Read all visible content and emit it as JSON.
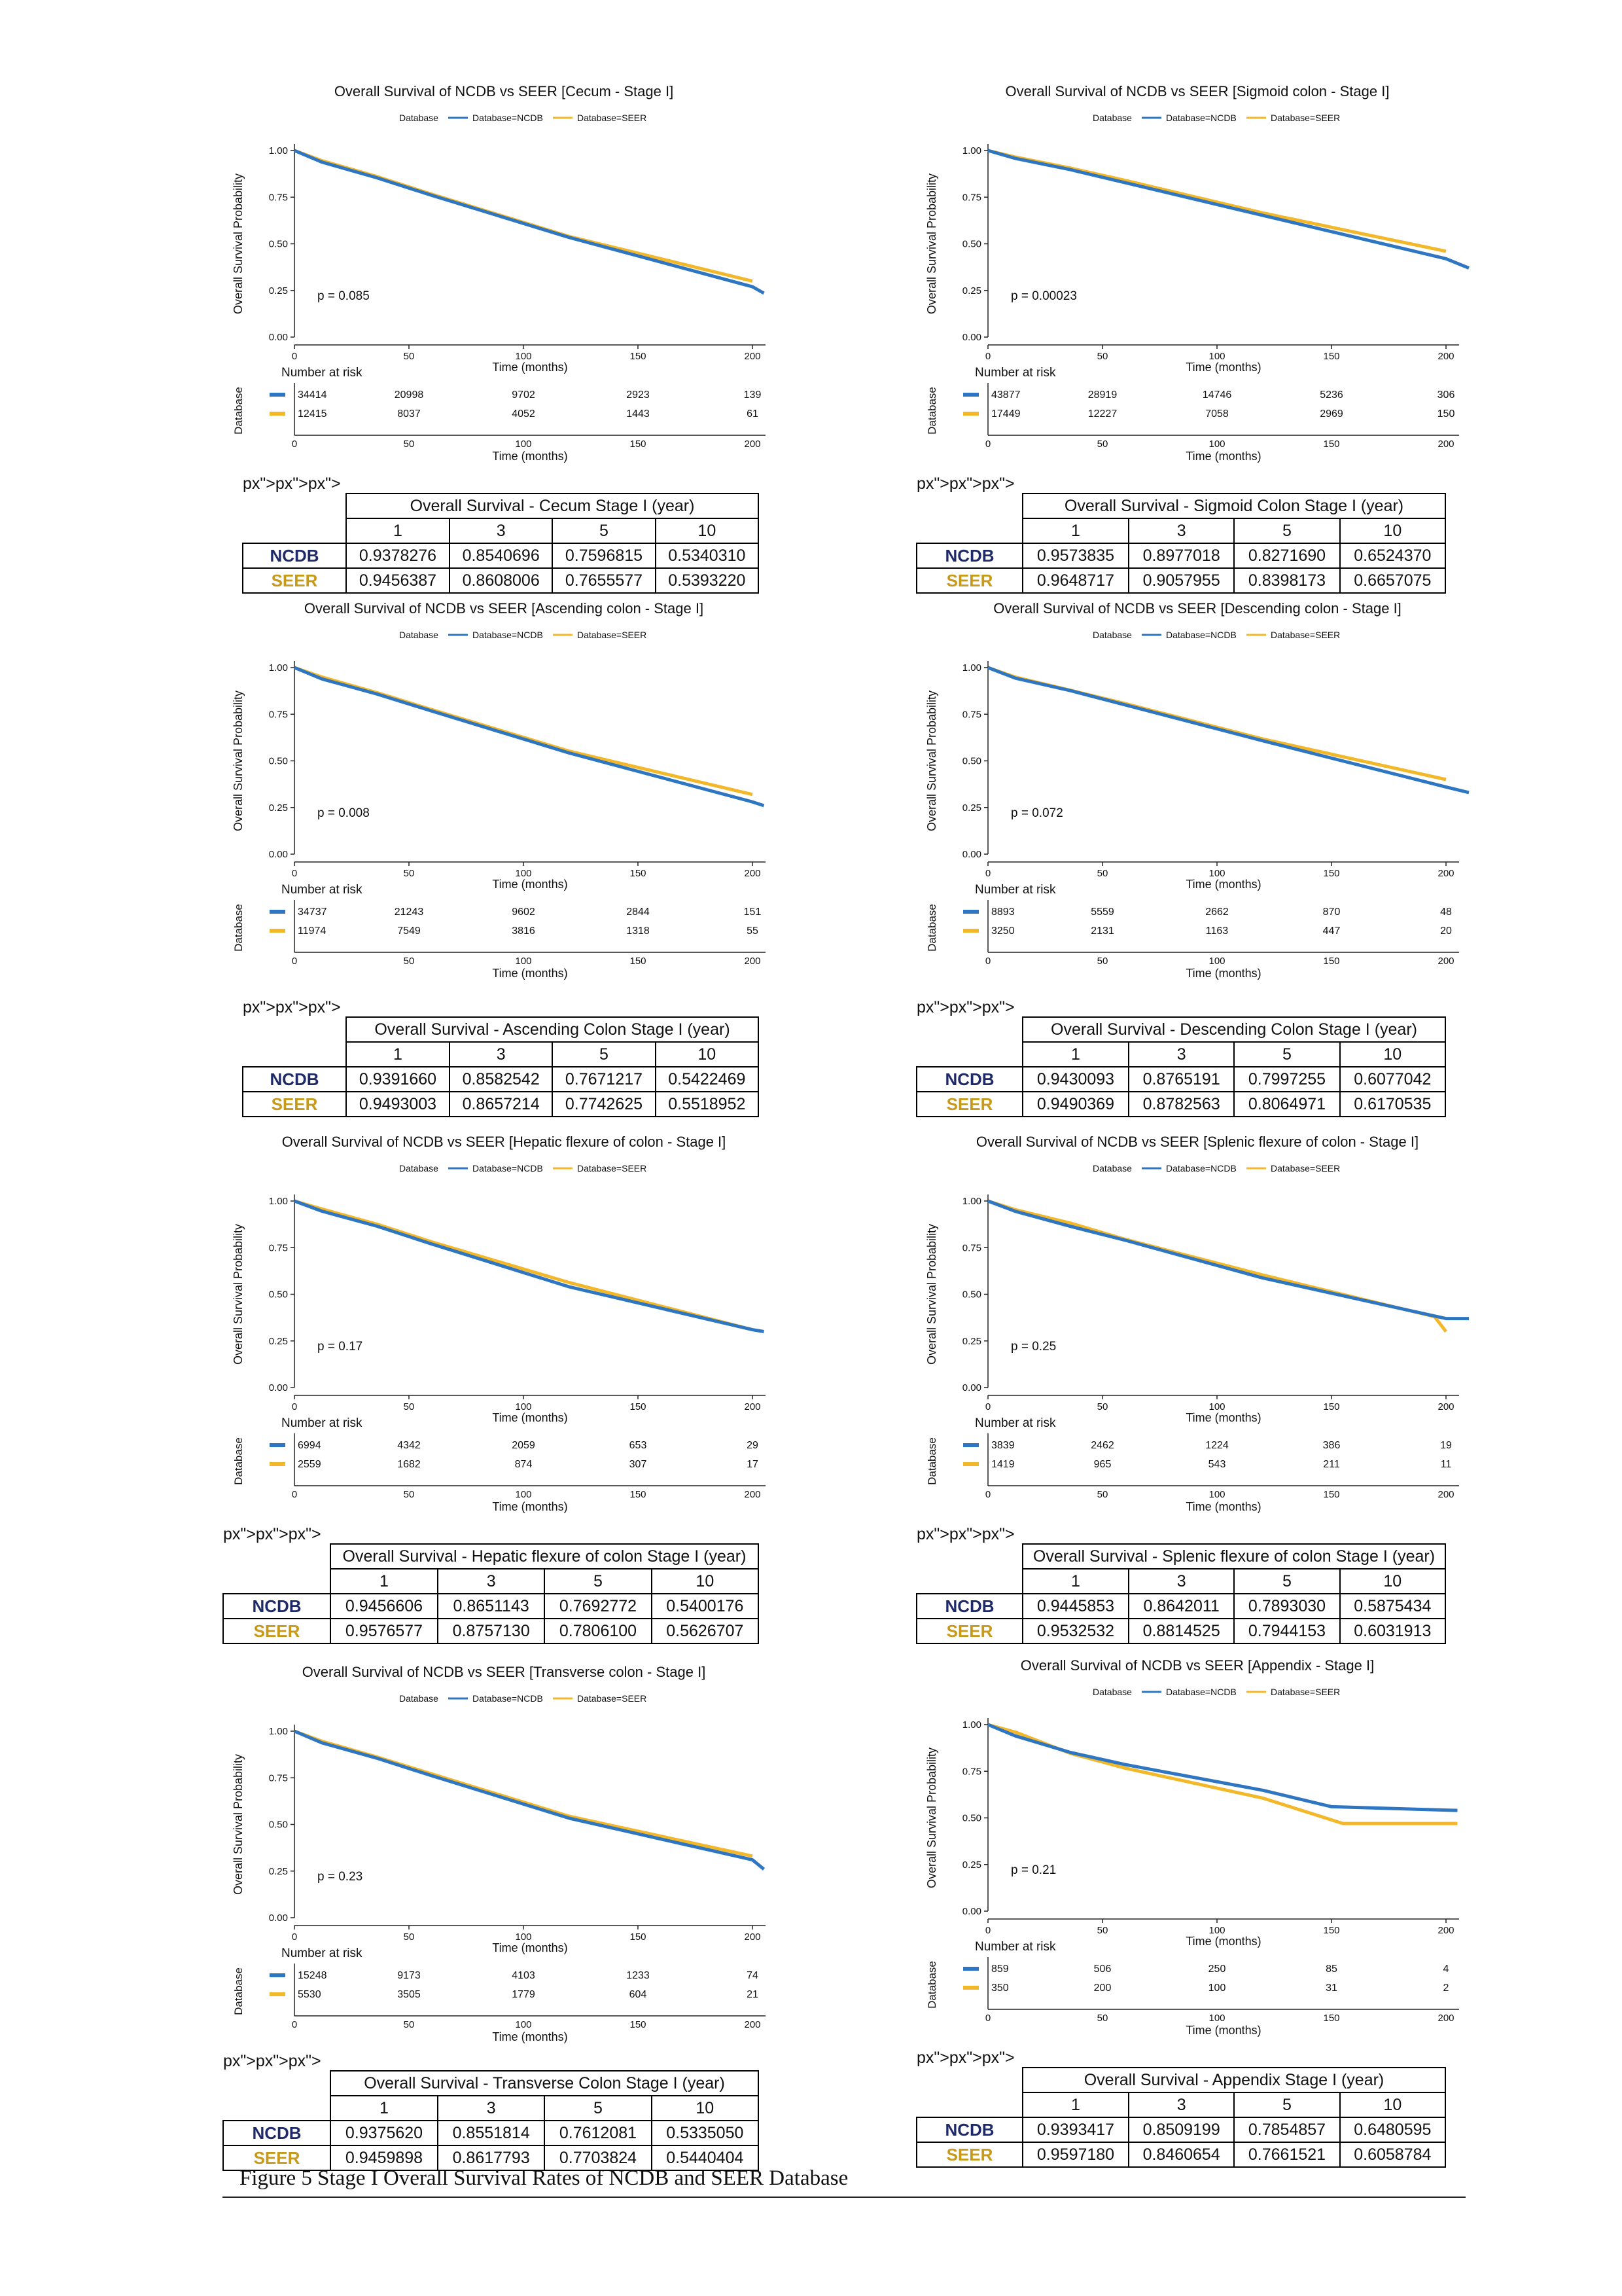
{
  "common": {
    "legend_title": "Database",
    "legend_ncdb": "Database=NCDB",
    "legend_seer": "Database=SEER",
    "y_axis_label": "Overall Survival Probability",
    "x_axis_label": "Time (months)",
    "risk_title": "Number at risk",
    "risk_axis_label": "Database",
    "y_ticks": [
      "0.00",
      "0.25",
      "0.50",
      "0.75",
      "1.00"
    ],
    "x_ticks": [
      "0",
      "50",
      "100",
      "150",
      "200"
    ],
    "table_years": [
      "1",
      "3",
      "5",
      "10"
    ],
    "row_ncdb": "NCDB",
    "row_seer": "SEER",
    "colors": {
      "ncdb": "#2e75c2",
      "seer": "#f3b82a"
    }
  },
  "caption": "Figure 5  Stage I Overall Survival Rates of NCDB and SEER Database",
  "chart_data": [
    {
      "type": "line",
      "title": "Overall Survival of NCDB vs SEER [Cecum - Stage I]",
      "xlabel": "Time (months)",
      "ylabel": "Overall Survival Probability",
      "xlim": [
        0,
        205
      ],
      "ylim": [
        0,
        1
      ],
      "p_value": "p = 0.085",
      "series": [
        {
          "name": "Database=NCDB",
          "x": [
            0,
            12,
            36,
            60,
            120,
            200,
            205
          ],
          "y": [
            1.0,
            0.9378,
            0.854,
            0.7597,
            0.534,
            0.27,
            0.235
          ]
        },
        {
          "name": "Database=SEER",
          "x": [
            0,
            12,
            36,
            60,
            120,
            200
          ],
          "y": [
            1.0,
            0.9456,
            0.8608,
            0.7656,
            0.5393,
            0.3
          ]
        }
      ],
      "risk_table": {
        "ncdb": [
          "34414",
          "20998",
          "9702",
          "2923",
          "139"
        ],
        "seer": [
          "12415",
          "8037",
          "4052",
          "1443",
          "61"
        ]
      },
      "table_title": "Overall Survival - Cecum Stage I (year)",
      "table": {
        "ncdb": [
          "0.9378276",
          "0.8540696",
          "0.7596815",
          "0.5340310"
        ],
        "seer": [
          "0.9456387",
          "0.8608006",
          "0.7655577",
          "0.5393220"
        ]
      }
    },
    {
      "type": "line",
      "title": "Overall Survival of NCDB vs SEER [Sigmoid colon - Stage I]",
      "xlabel": "Time (months)",
      "ylabel": "Overall Survival Probability",
      "xlim": [
        0,
        210
      ],
      "ylim": [
        0,
        1
      ],
      "p_value": "p = 0.00023",
      "series": [
        {
          "name": "Database=NCDB",
          "x": [
            0,
            12,
            36,
            60,
            120,
            200,
            210
          ],
          "y": [
            1.0,
            0.9574,
            0.8977,
            0.8272,
            0.6524,
            0.42,
            0.37
          ]
        },
        {
          "name": "Database=SEER",
          "x": [
            0,
            12,
            36,
            60,
            120,
            200
          ],
          "y": [
            1.0,
            0.9649,
            0.9058,
            0.8398,
            0.6657,
            0.46
          ]
        }
      ],
      "risk_table": {
        "ncdb": [
          "43877",
          "28919",
          "14746",
          "5236",
          "306"
        ],
        "seer": [
          "17449",
          "12227",
          "7058",
          "2969",
          "150"
        ]
      },
      "table_title": "Overall Survival - Sigmoid Colon Stage I (year)",
      "table": {
        "ncdb": [
          "0.9573835",
          "0.8977018",
          "0.8271690",
          "0.6524370"
        ],
        "seer": [
          "0.9648717",
          "0.9057955",
          "0.8398173",
          "0.6657075"
        ]
      }
    },
    {
      "type": "line",
      "title": "Overall Survival of NCDB vs SEER [Ascending colon - Stage I]",
      "xlabel": "Time (months)",
      "ylabel": "Overall Survival Probability",
      "xlim": [
        0,
        205
      ],
      "ylim": [
        0,
        1
      ],
      "p_value": "p = 0.008",
      "series": [
        {
          "name": "Database=NCDB",
          "x": [
            0,
            12,
            36,
            60,
            120,
            200,
            205
          ],
          "y": [
            1.0,
            0.9392,
            0.8583,
            0.7671,
            0.5422,
            0.28,
            0.26
          ]
        },
        {
          "name": "Database=SEER",
          "x": [
            0,
            12,
            36,
            60,
            120,
            200
          ],
          "y": [
            1.0,
            0.9493,
            0.8657,
            0.7743,
            0.5519,
            0.32
          ]
        }
      ],
      "risk_table": {
        "ncdb": [
          "34737",
          "21243",
          "9602",
          "2844",
          "151"
        ],
        "seer": [
          "11974",
          "7549",
          "3816",
          "1318",
          "55"
        ]
      },
      "table_title": "Overall Survival - Ascending Colon Stage I (year)",
      "table": {
        "ncdb": [
          "0.9391660",
          "0.8582542",
          "0.7671217",
          "0.5422469"
        ],
        "seer": [
          "0.9493003",
          "0.8657214",
          "0.7742625",
          "0.5518952"
        ]
      }
    },
    {
      "type": "line",
      "title": "Overall Survival of NCDB vs SEER [Descending colon - Stage I]",
      "xlabel": "Time (months)",
      "ylabel": "Overall Survival Probability",
      "xlim": [
        0,
        210
      ],
      "ylim": [
        0,
        1
      ],
      "p_value": "p = 0.072",
      "series": [
        {
          "name": "Database=NCDB",
          "x": [
            0,
            12,
            36,
            60,
            120,
            200,
            210
          ],
          "y": [
            1.0,
            0.943,
            0.8765,
            0.7997,
            0.6077,
            0.36,
            0.33
          ]
        },
        {
          "name": "Database=SEER",
          "x": [
            0,
            12,
            36,
            60,
            120,
            200
          ],
          "y": [
            1.0,
            0.949,
            0.8783,
            0.8065,
            0.6171,
            0.4
          ]
        }
      ],
      "risk_table": {
        "ncdb": [
          "8893",
          "5559",
          "2662",
          "870",
          "48"
        ],
        "seer": [
          "3250",
          "2131",
          "1163",
          "447",
          "20"
        ]
      },
      "table_title": "Overall Survival - Descending Colon Stage I (year)",
      "table": {
        "ncdb": [
          "0.9430093",
          "0.8765191",
          "0.7997255",
          "0.6077042"
        ],
        "seer": [
          "0.9490369",
          "0.8782563",
          "0.8064971",
          "0.6170535"
        ]
      }
    },
    {
      "type": "line",
      "title": "Overall Survival of NCDB vs SEER [Hepatic flexure of colon - Stage I]",
      "xlabel": "Time (months)",
      "ylabel": "Overall Survival Probability",
      "xlim": [
        0,
        205
      ],
      "ylim": [
        0,
        1
      ],
      "p_value": "p = 0.17",
      "series": [
        {
          "name": "Database=NCDB",
          "x": [
            0,
            12,
            36,
            60,
            120,
            200,
            205
          ],
          "y": [
            1.0,
            0.9457,
            0.8651,
            0.7693,
            0.54,
            0.31,
            0.3
          ]
        },
        {
          "name": "Database=SEER",
          "x": [
            0,
            12,
            36,
            60,
            120,
            200
          ],
          "y": [
            1.0,
            0.9577,
            0.8757,
            0.7806,
            0.5627,
            0.31
          ]
        }
      ],
      "risk_table": {
        "ncdb": [
          "6994",
          "4342",
          "2059",
          "653",
          "29"
        ],
        "seer": [
          "2559",
          "1682",
          "874",
          "307",
          "17"
        ]
      },
      "table_title": "Overall Survival - Hepatic flexure of colon  Stage I (year)",
      "table": {
        "ncdb": [
          "0.9456606",
          "0.8651143",
          "0.7692772",
          "0.5400176"
        ],
        "seer": [
          "0.9576577",
          "0.8757130",
          "0.7806100",
          "0.5626707"
        ]
      }
    },
    {
      "type": "line",
      "title": "Overall Survival of NCDB vs SEER [Splenic flexure of colon - Stage I]",
      "xlabel": "Time (months)",
      "ylabel": "Overall Survival Probability",
      "xlim": [
        0,
        210
      ],
      "ylim": [
        0,
        1
      ],
      "p_value": "p = 0.25",
      "series": [
        {
          "name": "Database=NCDB",
          "x": [
            0,
            12,
            36,
            60,
            120,
            200,
            210
          ],
          "y": [
            1.0,
            0.9446,
            0.8642,
            0.7893,
            0.5875,
            0.37,
            0.37
          ]
        },
        {
          "name": "Database=SEER",
          "x": [
            0,
            12,
            36,
            60,
            120,
            195,
            200
          ],
          "y": [
            1.0,
            0.9533,
            0.8815,
            0.7944,
            0.6032,
            0.38,
            0.3
          ]
        }
      ],
      "risk_table": {
        "ncdb": [
          "3839",
          "2462",
          "1224",
          "386",
          "19"
        ],
        "seer": [
          "1419",
          "965",
          "543",
          "211",
          "11"
        ]
      },
      "table_title": "Overall Survival - Splenic flexure of colon  Stage I (year)",
      "table": {
        "ncdb": [
          "0.9445853",
          "0.8642011",
          "0.7893030",
          "0.5875434"
        ],
        "seer": [
          "0.9532532",
          "0.8814525",
          "0.7944153",
          "0.6031913"
        ]
      }
    },
    {
      "type": "line",
      "title": "Overall Survival of NCDB vs SEER [Transverse colon - Stage I]",
      "xlabel": "Time (months)",
      "ylabel": "Overall Survival Probability",
      "xlim": [
        0,
        205
      ],
      "ylim": [
        0,
        1
      ],
      "p_value": "p = 0.23",
      "series": [
        {
          "name": "Database=NCDB",
          "x": [
            0,
            12,
            36,
            60,
            120,
            200,
            205
          ],
          "y": [
            1.0,
            0.9376,
            0.8552,
            0.7612,
            0.5335,
            0.31,
            0.26
          ]
        },
        {
          "name": "Database=SEER",
          "x": [
            0,
            12,
            36,
            60,
            120,
            200
          ],
          "y": [
            1.0,
            0.946,
            0.8618,
            0.7704,
            0.544,
            0.33
          ]
        }
      ],
      "risk_table": {
        "ncdb": [
          "15248",
          "9173",
          "4103",
          "1233",
          "74"
        ],
        "seer": [
          "5530",
          "3505",
          "1779",
          "604",
          "21"
        ]
      },
      "table_title": "Overall Survival - Transverse Colon Stage I (year)",
      "table": {
        "ncdb": [
          "0.9375620",
          "0.8551814",
          "0.7612081",
          "0.5335050"
        ],
        "seer": [
          "0.9459898",
          "0.8617793",
          "0.7703824",
          "0.5440404"
        ]
      }
    },
    {
      "type": "line",
      "title": "Overall Survival of NCDB vs SEER [Appendix - Stage I]",
      "xlabel": "Time (months)",
      "ylabel": "Overall Survival Probability",
      "xlim": [
        0,
        205
      ],
      "ylim": [
        0,
        1
      ],
      "p_value": "p = 0.21",
      "series": [
        {
          "name": "Database=NCDB",
          "x": [
            0,
            12,
            36,
            60,
            120,
            150,
            205
          ],
          "y": [
            1.0,
            0.9393,
            0.851,
            0.7855,
            0.648,
            0.56,
            0.54
          ]
        },
        {
          "name": "Database=SEER",
          "x": [
            0,
            12,
            36,
            60,
            120,
            155,
            205
          ],
          "y": [
            1.0,
            0.9597,
            0.8461,
            0.7662,
            0.6059,
            0.47,
            0.47
          ]
        }
      ],
      "risk_table": {
        "ncdb": [
          "859",
          "506",
          "250",
          "85",
          "4"
        ],
        "seer": [
          "350",
          "200",
          "100",
          "31",
          "2"
        ]
      },
      "table_title": "Overall Survival - Appendix Stage I (year)",
      "table": {
        "ncdb": [
          "0.9393417",
          "0.8509199",
          "0.7854857",
          "0.6480595"
        ],
        "seer": [
          "0.9597180",
          "0.8460654",
          "0.7661521",
          "0.6058784"
        ]
      }
    }
  ]
}
